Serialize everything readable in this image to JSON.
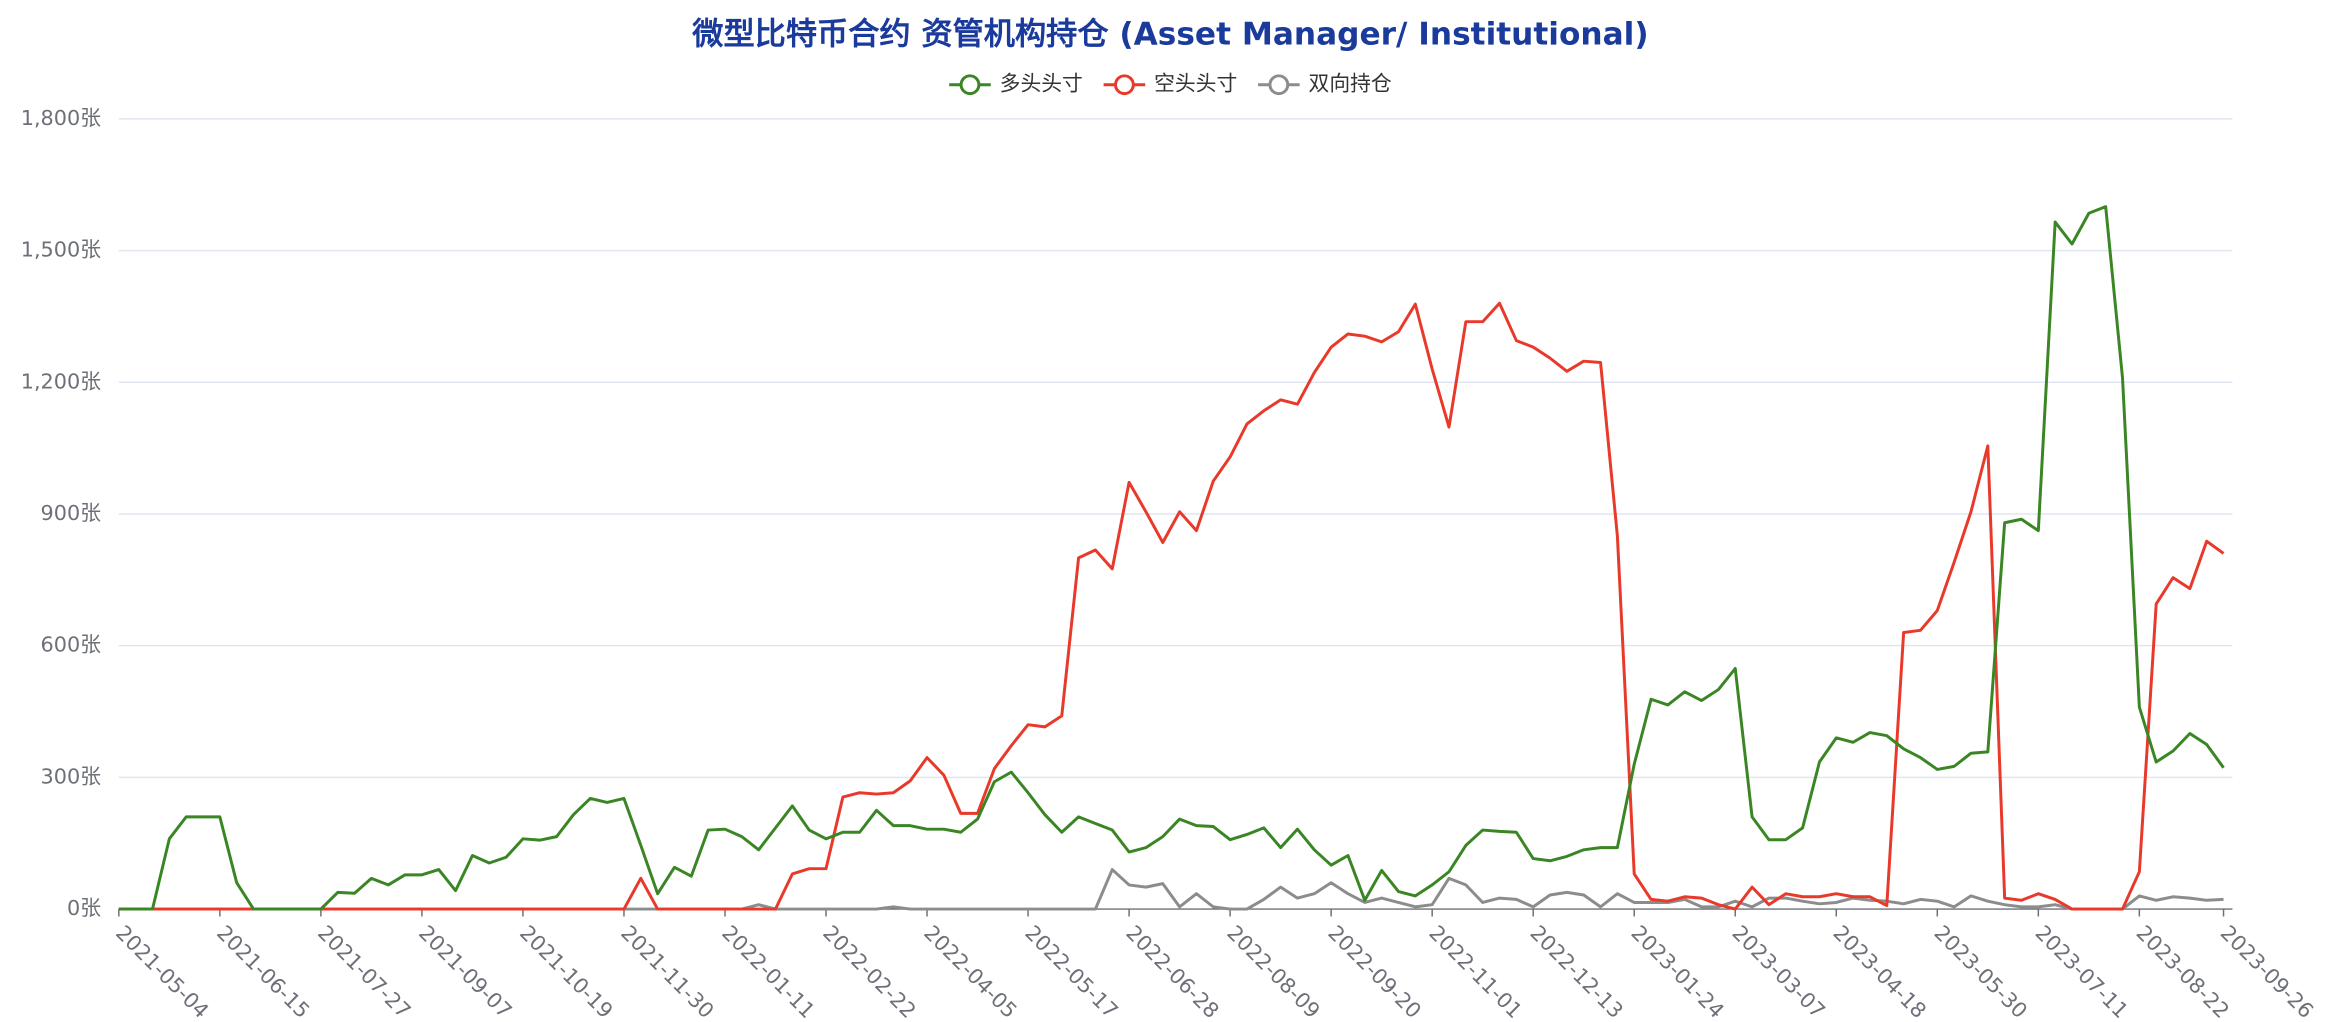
{
  "chart_data": {
    "type": "line",
    "title": "微型比特币合约 资管机构持仓 (Asset Manager/ Institutional)",
    "categories": [
      "2021-05-04",
      null,
      null,
      null,
      null,
      null,
      "2021-06-15",
      null,
      null,
      null,
      null,
      null,
      "2021-07-27",
      null,
      null,
      null,
      null,
      null,
      "2021-09-07",
      null,
      null,
      null,
      null,
      null,
      "2021-10-19",
      null,
      null,
      null,
      null,
      null,
      "2021-11-30",
      null,
      null,
      null,
      null,
      null,
      "2022-01-11",
      null,
      null,
      null,
      null,
      null,
      "2022-02-22",
      null,
      null,
      null,
      null,
      null,
      "2022-04-05",
      null,
      null,
      null,
      null,
      null,
      "2022-05-17",
      null,
      null,
      null,
      null,
      null,
      "2022-06-28",
      null,
      null,
      null,
      null,
      null,
      "2022-08-09",
      null,
      null,
      null,
      null,
      null,
      "2022-09-20",
      null,
      null,
      null,
      null,
      null,
      "2022-11-01",
      null,
      null,
      null,
      null,
      null,
      "2022-12-13",
      null,
      null,
      null,
      null,
      null,
      "2023-01-24",
      null,
      null,
      null,
      null,
      null,
      "2023-03-07",
      null,
      null,
      null,
      null,
      null,
      "2023-04-18",
      null,
      null,
      null,
      null,
      null,
      "2023-05-30",
      null,
      null,
      null,
      null,
      null,
      "2023-07-11",
      null,
      null,
      null,
      null,
      null,
      "2023-08-22",
      null,
      null,
      null,
      null,
      "2023-09-26"
    ],
    "series": [
      {
        "name": "多头头寸",
        "color": "#3a8524",
        "values": [
          0,
          0,
          0,
          160,
          210,
          210,
          210,
          60,
          0,
          0,
          0,
          0,
          0,
          38,
          36,
          70,
          55,
          78,
          78,
          90,
          42,
          122,
          105,
          118,
          160,
          157,
          165,
          215,
          252,
          243,
          252,
          145,
          35,
          95,
          75,
          180,
          182,
          165,
          135,
          185,
          235,
          180,
          160,
          175,
          175,
          225,
          190,
          190,
          182,
          182,
          175,
          205,
          290,
          312,
          265,
          215,
          175,
          210,
          195,
          180,
          130,
          140,
          165,
          205,
          190,
          188,
          158,
          170,
          185,
          140,
          182,
          135,
          100,
          122,
          20,
          88,
          40,
          30,
          55,
          85,
          145,
          180,
          177,
          175,
          115,
          110,
          120,
          135,
          140,
          140,
          330,
          478,
          465,
          495,
          475,
          500,
          548,
          210,
          158,
          158,
          185,
          335,
          390,
          380,
          402,
          395,
          365,
          345,
          318,
          325,
          355,
          358,
          880,
          888,
          862,
          1565,
          1515,
          1585,
          1600,
          1210,
          460,
          335,
          360,
          400,
          375,
          322
        ]
      },
      {
        "name": "空头头寸",
        "color": "#e8392b",
        "values": [
          0,
          0,
          0,
          0,
          0,
          0,
          0,
          0,
          0,
          0,
          0,
          0,
          0,
          0,
          0,
          0,
          0,
          0,
          0,
          0,
          0,
          0,
          0,
          0,
          0,
          0,
          0,
          0,
          0,
          0,
          0,
          70,
          0,
          0,
          0,
          0,
          0,
          0,
          0,
          0,
          80,
          92,
          92,
          255,
          265,
          262,
          265,
          292,
          345,
          305,
          218,
          218,
          320,
          372,
          420,
          415,
          440,
          800,
          818,
          775,
          972,
          905,
          835,
          905,
          862,
          975,
          1030,
          1105,
          1135,
          1160,
          1150,
          1222,
          1280,
          1310,
          1305,
          1292,
          1315,
          1378,
          1230,
          1098,
          1338,
          1338,
          1380,
          1295,
          1280,
          1255,
          1225,
          1248,
          1245,
          850,
          80,
          22,
          18,
          28,
          25,
          10,
          0,
          50,
          10,
          35,
          28,
          28,
          35,
          28,
          28,
          8,
          630,
          635,
          680,
          790,
          905,
          1055,
          25,
          20,
          35,
          22,
          0,
          0,
          0,
          0,
          85,
          695,
          755,
          730,
          838,
          810
        ]
      },
      {
        "name": "双向持仓",
        "color": "#8c8c8c",
        "values": [
          0,
          0,
          0,
          0,
          0,
          0,
          0,
          0,
          0,
          0,
          0,
          0,
          0,
          0,
          0,
          0,
          0,
          0,
          0,
          0,
          0,
          0,
          0,
          0,
          0,
          0,
          0,
          0,
          0,
          0,
          0,
          0,
          0,
          0,
          0,
          0,
          0,
          0,
          10,
          0,
          0,
          0,
          0,
          0,
          0,
          0,
          5,
          0,
          0,
          0,
          0,
          0,
          0,
          0,
          0,
          0,
          0,
          0,
          0,
          90,
          55,
          50,
          58,
          5,
          35,
          5,
          0,
          0,
          22,
          50,
          25,
          35,
          60,
          35,
          15,
          25,
          15,
          5,
          10,
          70,
          55,
          15,
          25,
          22,
          5,
          32,
          38,
          32,
          5,
          35,
          15,
          15,
          15,
          22,
          5,
          5,
          18,
          5,
          25,
          25,
          18,
          12,
          15,
          25,
          20,
          18,
          12,
          22,
          18,
          5,
          30,
          18,
          10,
          5,
          5,
          10,
          0,
          0,
          0,
          0,
          30,
          20,
          28,
          25,
          20,
          22
        ]
      }
    ],
    "ylim": [
      0,
      1800
    ],
    "yticks": [
      {
        "value": 0,
        "label": "0张"
      },
      {
        "value": 300,
        "label": "300张"
      },
      {
        "value": 600,
        "label": "600张"
      },
      {
        "value": 900,
        "label": "900张"
      },
      {
        "value": 1200,
        "label": "1,200张"
      },
      {
        "value": 1500,
        "label": "1,500张"
      },
      {
        "value": 1800,
        "label": "1,800张"
      }
    ],
    "grid": true,
    "legend": "top"
  }
}
